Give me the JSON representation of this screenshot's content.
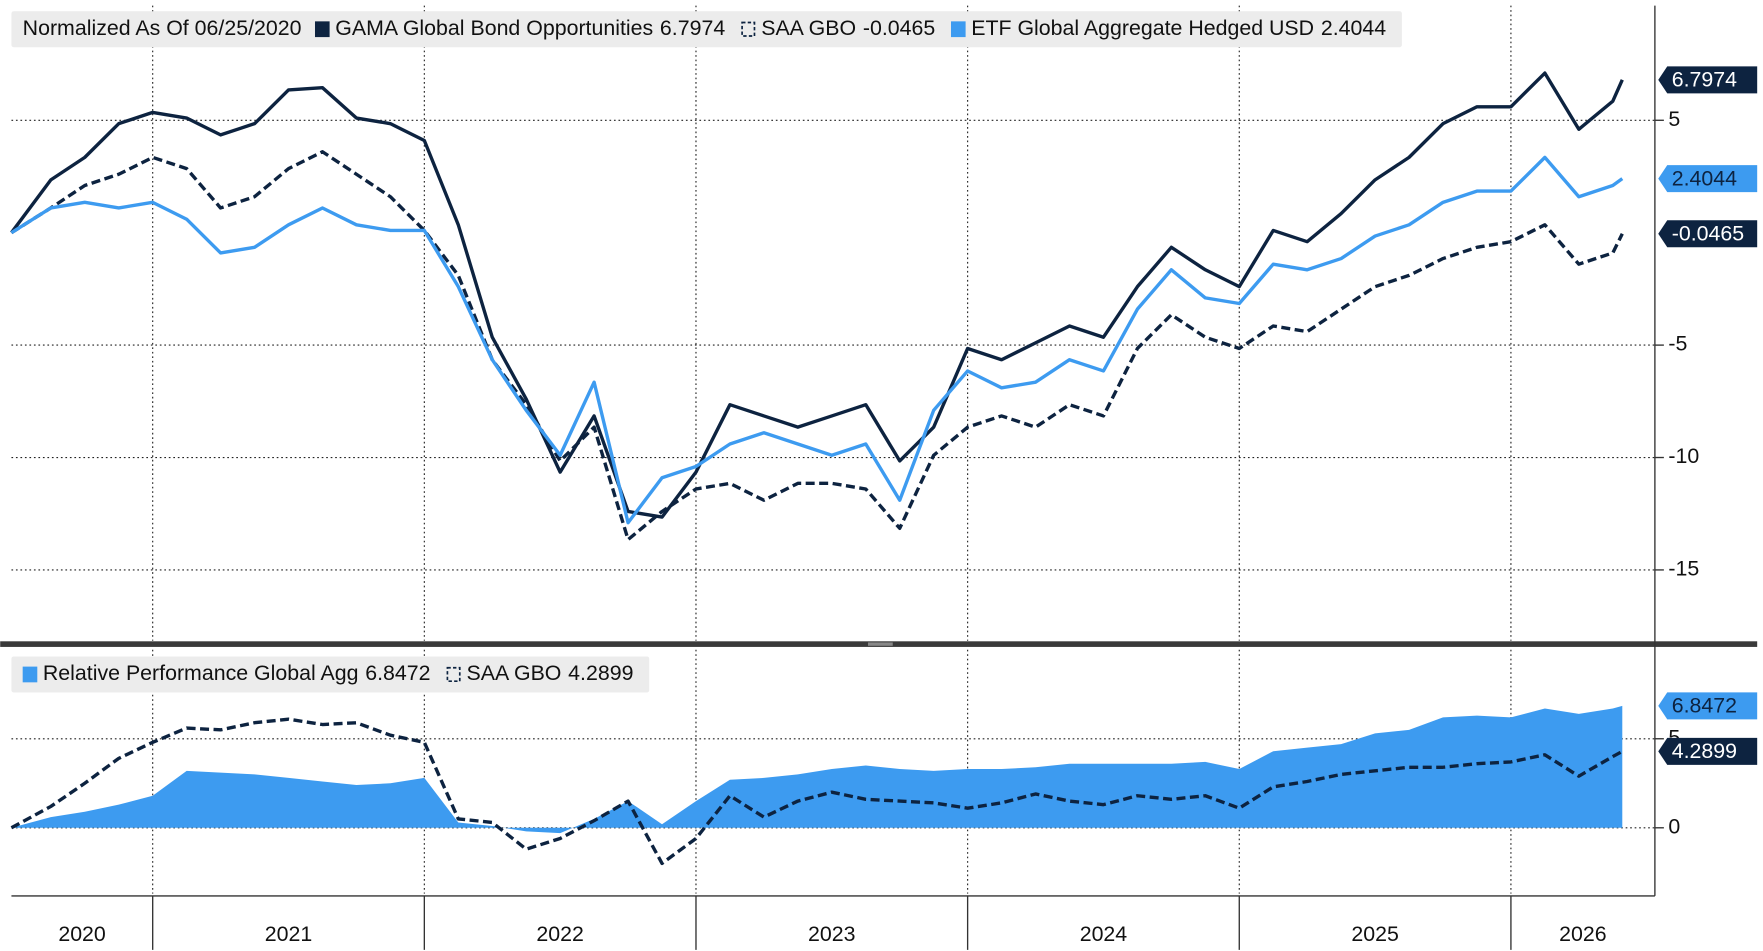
{
  "chart_data": [
    {
      "type": "line",
      "title": "Normalized As Of 06/25/2020",
      "x": [
        2020.48,
        2020.625,
        2020.75,
        2020.875,
        2021,
        2021.125,
        2021.25,
        2021.375,
        2021.5,
        2021.625,
        2021.75,
        2021.875,
        2022,
        2022.125,
        2022.25,
        2022.375,
        2022.5,
        2022.625,
        2022.75,
        2022.875,
        2023,
        2023.125,
        2023.25,
        2023.375,
        2023.5,
        2023.625,
        2023.75,
        2023.875,
        2024,
        2024.125,
        2024.25,
        2024.375,
        2024.5,
        2024.625,
        2024.75,
        2024.875,
        2025,
        2025.125,
        2025.25,
        2025.375,
        2025.5,
        2025.625,
        2025.75,
        2025.875,
        2026,
        2026.125,
        2026.25,
        2026.375,
        2026.41
      ],
      "series": [
        {
          "name": "GAMA Global Bond Opportunities",
          "color": "#0d2340",
          "dashed": false,
          "values": [
            0,
            2.35,
            3.35,
            4.85,
            5.35,
            5.1,
            4.35,
            4.85,
            6.35,
            6.45,
            5.1,
            4.85,
            4.1,
            0.35,
            -4.65,
            -7.4,
            -10.65,
            -8.15,
            -12.4,
            -12.65,
            -10.65,
            -7.65,
            -8.15,
            -8.65,
            -8.15,
            -7.65,
            -10.15,
            -8.65,
            -5.15,
            -5.65,
            -4.9,
            -4.15,
            -4.65,
            -2.4,
            -0.65,
            -1.65,
            -2.4,
            0.1,
            -0.4,
            0.85,
            2.35,
            3.35,
            4.85,
            5.6,
            5.6,
            7.1,
            4.6,
            5.85,
            6.7974
          ]
        },
        {
          "name": "SAA GBO",
          "color": "#0d2340",
          "dashed": true,
          "values": [
            0,
            1.1,
            2.1,
            2.6,
            3.35,
            2.85,
            1.1,
            1.6,
            2.85,
            3.6,
            2.6,
            1.6,
            0.1,
            -1.9,
            -5.65,
            -7.65,
            -10.15,
            -8.65,
            -13.65,
            -12.4,
            -11.4,
            -11.15,
            -11.9,
            -11.15,
            -11.15,
            -11.4,
            -13.15,
            -9.9,
            -8.65,
            -8.15,
            -8.65,
            -7.65,
            -8.15,
            -5.15,
            -3.65,
            -4.65,
            -5.15,
            -4.15,
            -4.4,
            -3.4,
            -2.4,
            -1.9,
            -1.15,
            -0.65,
            -0.4,
            0.35,
            -1.4,
            -0.9,
            -0.0465
          ]
        },
        {
          "name": "ETF Global Aggregate Hedged USD",
          "color": "#3d9bf0",
          "dashed": false,
          "values": [
            0,
            1.1,
            1.35,
            1.1,
            1.35,
            0.6,
            -0.9,
            -0.65,
            0.35,
            1.1,
            0.35,
            0.1,
            0.1,
            -2.4,
            -5.65,
            -7.9,
            -9.9,
            -6.65,
            -12.9,
            -10.9,
            -10.4,
            -9.4,
            -8.9,
            -9.4,
            -9.9,
            -9.4,
            -11.9,
            -7.9,
            -6.15,
            -6.9,
            -6.65,
            -5.65,
            -6.15,
            -3.4,
            -1.65,
            -2.9,
            -3.15,
            -1.4,
            -1.65,
            -1.15,
            -0.15,
            0.35,
            1.35,
            1.85,
            1.85,
            3.35,
            1.6,
            2.1,
            2.4044
          ]
        }
      ],
      "xlim": [
        2020.48,
        2026.53
      ],
      "xticks": [
        2020,
        2021,
        2022,
        2023,
        2024,
        2025,
        2026
      ],
      "ylim": [
        -18.15,
        10.1
      ],
      "yticks": [
        -15,
        -10,
        -5,
        5
      ],
      "grid": true
    },
    {
      "type": "area",
      "x": [
        2020.48,
        2020.625,
        2020.75,
        2020.875,
        2021,
        2021.125,
        2021.25,
        2021.375,
        2021.5,
        2021.625,
        2021.75,
        2021.875,
        2022,
        2022.125,
        2022.25,
        2022.375,
        2022.5,
        2022.625,
        2022.75,
        2022.875,
        2023,
        2023.125,
        2023.25,
        2023.375,
        2023.5,
        2023.625,
        2023.75,
        2023.875,
        2024,
        2024.125,
        2024.25,
        2024.375,
        2024.5,
        2024.625,
        2024.75,
        2024.875,
        2025,
        2025.125,
        2025.25,
        2025.375,
        2025.5,
        2025.625,
        2025.75,
        2025.875,
        2026,
        2026.125,
        2026.25,
        2026.375,
        2026.41
      ],
      "series": [
        {
          "name": "Relative Performance Global Agg",
          "color": "#3d9bf0",
          "type": "area",
          "values": [
            0,
            0.6,
            0.9,
            1.3,
            1.8,
            3.2,
            3.1,
            3.0,
            2.8,
            2.6,
            2.4,
            2.5,
            2.8,
            0.3,
            0.1,
            -0.2,
            -0.3,
            0.5,
            1.5,
            0.2,
            1.5,
            2.7,
            2.8,
            3.0,
            3.3,
            3.5,
            3.3,
            3.2,
            3.3,
            3.3,
            3.4,
            3.6,
            3.6,
            3.6,
            3.6,
            3.7,
            3.3,
            4.3,
            4.5,
            4.7,
            5.3,
            5.5,
            6.2,
            6.3,
            6.2,
            6.7,
            6.4,
            6.7,
            6.8472
          ]
        },
        {
          "name": "SAA GBO",
          "color": "#0d2340",
          "type": "line",
          "dashed": true,
          "values": [
            0,
            1.2,
            2.5,
            3.9,
            4.8,
            5.6,
            5.5,
            5.9,
            6.1,
            5.8,
            5.9,
            5.2,
            4.8,
            0.5,
            0.3,
            -1.2,
            -0.6,
            0.4,
            1.5,
            -2.0,
            -0.6,
            1.8,
            0.6,
            1.5,
            2.0,
            1.6,
            1.5,
            1.4,
            1.1,
            1.4,
            1.9,
            1.5,
            1.3,
            1.8,
            1.6,
            1.8,
            1.1,
            2.3,
            2.6,
            3.0,
            3.2,
            3.4,
            3.4,
            3.6,
            3.7,
            4.1,
            2.9,
            4.0,
            4.2899
          ]
        }
      ],
      "xlim": [
        2020.48,
        2026.53
      ],
      "xticks": [
        2020,
        2021,
        2022,
        2023,
        2024,
        2025,
        2026
      ],
      "ylim": [
        -3.7,
        10
      ],
      "yticks": [
        0,
        5
      ],
      "grid": true
    }
  ]
}
